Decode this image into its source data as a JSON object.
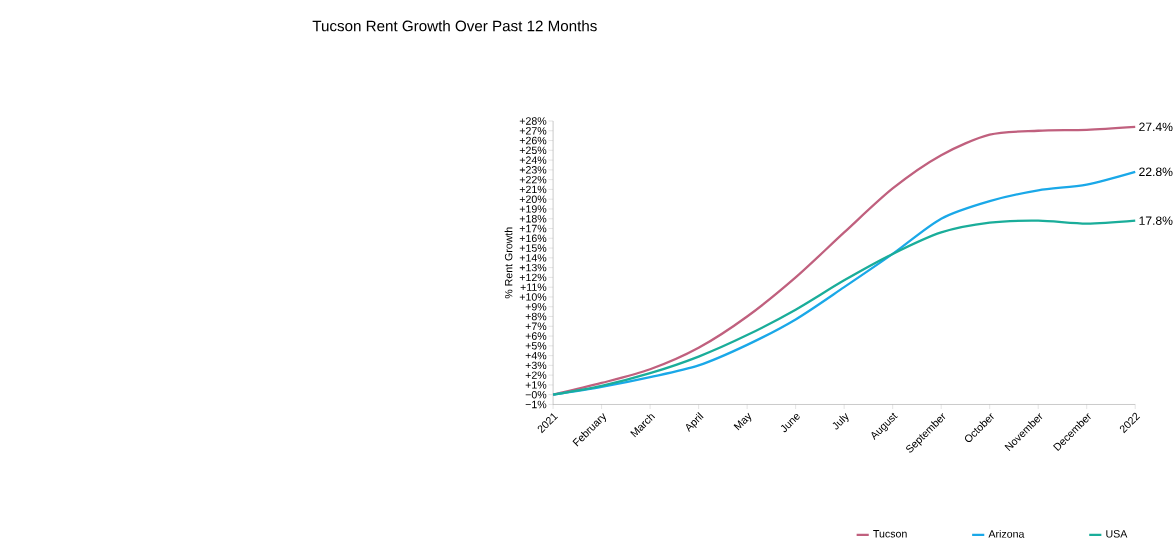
{
  "chart_data": {
    "type": "line",
    "title": "Tucson Rent Growth Over Past 12 Months",
    "ylabel": "% Rent Growth",
    "categories": [
      "2021",
      "February",
      "March",
      "April",
      "May",
      "June",
      "July",
      "August",
      "September",
      "October",
      "November",
      "December",
      "2022"
    ],
    "series": [
      {
        "name": "Tucson",
        "color": "#c0607e",
        "values": [
          0,
          1.2,
          2.6,
          4.8,
          8.0,
          12.0,
          16.6,
          21.1,
          24.5,
          26.6,
          27.0,
          27.1,
          27.4
        ],
        "value_labels": [
          null,
          null,
          null,
          null,
          null,
          null,
          null,
          null,
          null,
          null,
          null,
          null,
          "27.4%"
        ]
      },
      {
        "name": "Arizona",
        "color": "#1aa8e8",
        "values": [
          0,
          0.8,
          1.8,
          3.0,
          5.1,
          7.7,
          11.0,
          14.4,
          18.0,
          19.8,
          20.9,
          21.5,
          22.8
        ],
        "value_labels": [
          null,
          null,
          null,
          null,
          null,
          null,
          null,
          null,
          null,
          null,
          null,
          null,
          "22.8%"
        ]
      },
      {
        "name": "USA",
        "color": "#1aad9a",
        "values": [
          0,
          0.9,
          2.2,
          3.9,
          6.1,
          8.7,
          11.7,
          14.4,
          16.6,
          17.6,
          17.8,
          17.5,
          17.8
        ],
        "value_labels": [
          null,
          null,
          null,
          null,
          null,
          null,
          null,
          null,
          null,
          null,
          null,
          null,
          "17.8%"
        ]
      }
    ],
    "ylim": [
      -1,
      28
    ],
    "yticks": [
      {
        "value": -1,
        "label": "−1%"
      },
      {
        "value": 0,
        "label": "−0%"
      },
      {
        "value": 1,
        "label": "+1%"
      },
      {
        "value": 2,
        "label": "+2%"
      },
      {
        "value": 3,
        "label": "+3%"
      },
      {
        "value": 4,
        "label": "+4%"
      },
      {
        "value": 5,
        "label": "+5%"
      },
      {
        "value": 6,
        "label": "+6%"
      },
      {
        "value": 7,
        "label": "+7%"
      },
      {
        "value": 8,
        "label": "+8%"
      },
      {
        "value": 9,
        "label": "+9%"
      },
      {
        "value": 10,
        "label": "+10%"
      },
      {
        "value": 11,
        "label": "+11%"
      },
      {
        "value": 12,
        "label": "+12%"
      },
      {
        "value": 13,
        "label": "+13%"
      },
      {
        "value": 14,
        "label": "+14%"
      },
      {
        "value": 15,
        "label": "+15%"
      },
      {
        "value": 16,
        "label": "+16%"
      },
      {
        "value": 17,
        "label": "+17%"
      },
      {
        "value": 18,
        "label": "+18%"
      },
      {
        "value": 19,
        "label": "+19%"
      },
      {
        "value": 20,
        "label": "+20%"
      },
      {
        "value": 21,
        "label": "+21%"
      },
      {
        "value": 22,
        "label": "+22%"
      },
      {
        "value": 23,
        "label": "+23%"
      },
      {
        "value": 24,
        "label": "+24%"
      },
      {
        "value": 25,
        "label": "+25%"
      },
      {
        "value": 26,
        "label": "+26%"
      },
      {
        "value": 27,
        "label": "+27%"
      },
      {
        "value": 28,
        "label": "+28%"
      }
    ],
    "legend": "bottom"
  }
}
